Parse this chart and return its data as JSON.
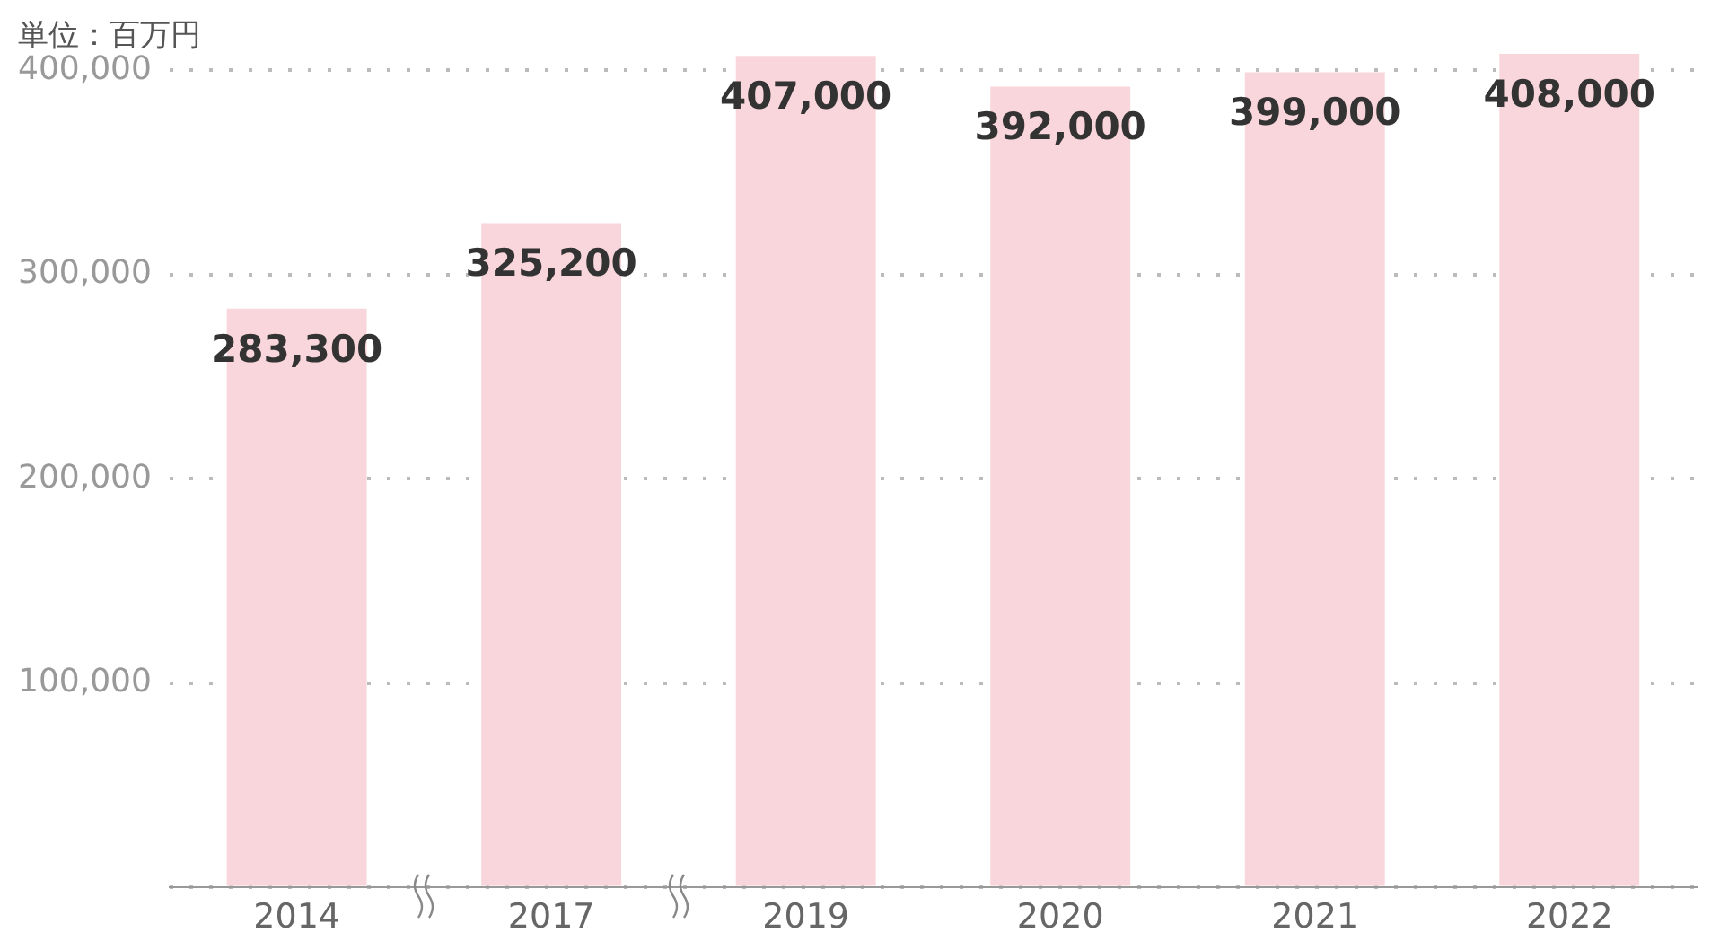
{
  "chart_data": {
    "type": "bar",
    "ylabel": "単位：百万円",
    "categories": [
      "2014",
      "2017",
      "2019",
      "2020",
      "2021",
      "2022"
    ],
    "values": [
      283300,
      325200,
      407000,
      392000,
      399000,
      408000
    ],
    "value_labels": [
      "283,300",
      "325,200",
      "407,000",
      "392,000",
      "399,000",
      "408,000"
    ],
    "color": "#f9d6db",
    "ylim": [
      0,
      408000
    ],
    "yticks": [
      {
        "value": 0,
        "label": null
      },
      {
        "value": 100000,
        "label": "100,000"
      },
      {
        "value": 200000,
        "label": "200,000"
      },
      {
        "value": 300000,
        "label": "300,000"
      },
      {
        "value": 400000,
        "label": "400,000"
      }
    ],
    "grid": "y",
    "legend": false
  }
}
